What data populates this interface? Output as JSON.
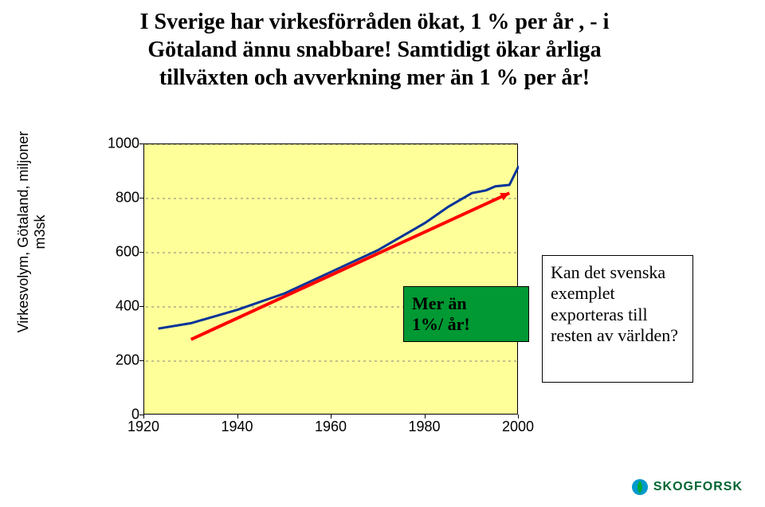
{
  "title_line1": "I Sverige har virkesförråden ökat, 1 % per år , - i",
  "title_line2": "Götaland ännu snabbare! Samtidigt ökar årliga",
  "title_line3": "tillväxten och avverkning mer än 1 % per år!",
  "yaxis_label": "Virkesvolym, Götaland, miljoner m3sk",
  "chart": {
    "type": "line",
    "plot_bg_color": "#ffff99",
    "grid_color": "#808080",
    "grid_dash": "3,4",
    "ylim": [
      0,
      1000
    ],
    "ytick_step": 200,
    "yticks": [
      0,
      200,
      400,
      600,
      800,
      1000
    ],
    "xlim": [
      1920,
      2000
    ],
    "xticks": [
      1920,
      1940,
      1960,
      1980,
      2000
    ],
    "tick_fontsize": 18,
    "tick_font": "Arial",
    "series": [
      {
        "name": "virkesvolym",
        "color": "#003399",
        "width": 3,
        "data": [
          [
            1923,
            320
          ],
          [
            1930,
            340
          ],
          [
            1940,
            390
          ],
          [
            1950,
            450
          ],
          [
            1960,
            530
          ],
          [
            1970,
            610
          ],
          [
            1980,
            710
          ],
          [
            1985,
            770
          ],
          [
            1990,
            820
          ],
          [
            1993,
            830
          ],
          [
            1995,
            845
          ],
          [
            1998,
            850
          ],
          [
            2000,
            920
          ]
        ]
      }
    ],
    "arrow": {
      "color": "#ff0000",
      "width": 4,
      "from": [
        1930,
        280
      ],
      "to": [
        1998,
        820
      ],
      "head_size": 12
    },
    "annotation_box": {
      "bg": "#009933",
      "border": "#000000",
      "text_line1": "Mer än",
      "text_line2": "1%/ år!",
      "font_size": 22,
      "font_weight": "bold"
    }
  },
  "side_note": {
    "text": "Kan det svenska exemplet exporteras till resten av världen?",
    "bg": "#ffffff",
    "border": "#000000",
    "font_size": 22
  },
  "logo": {
    "text": "SKOGFORSK",
    "color": "#006633",
    "icon_fill": "#0099cc",
    "icon_leaf": "#00aa33"
  }
}
